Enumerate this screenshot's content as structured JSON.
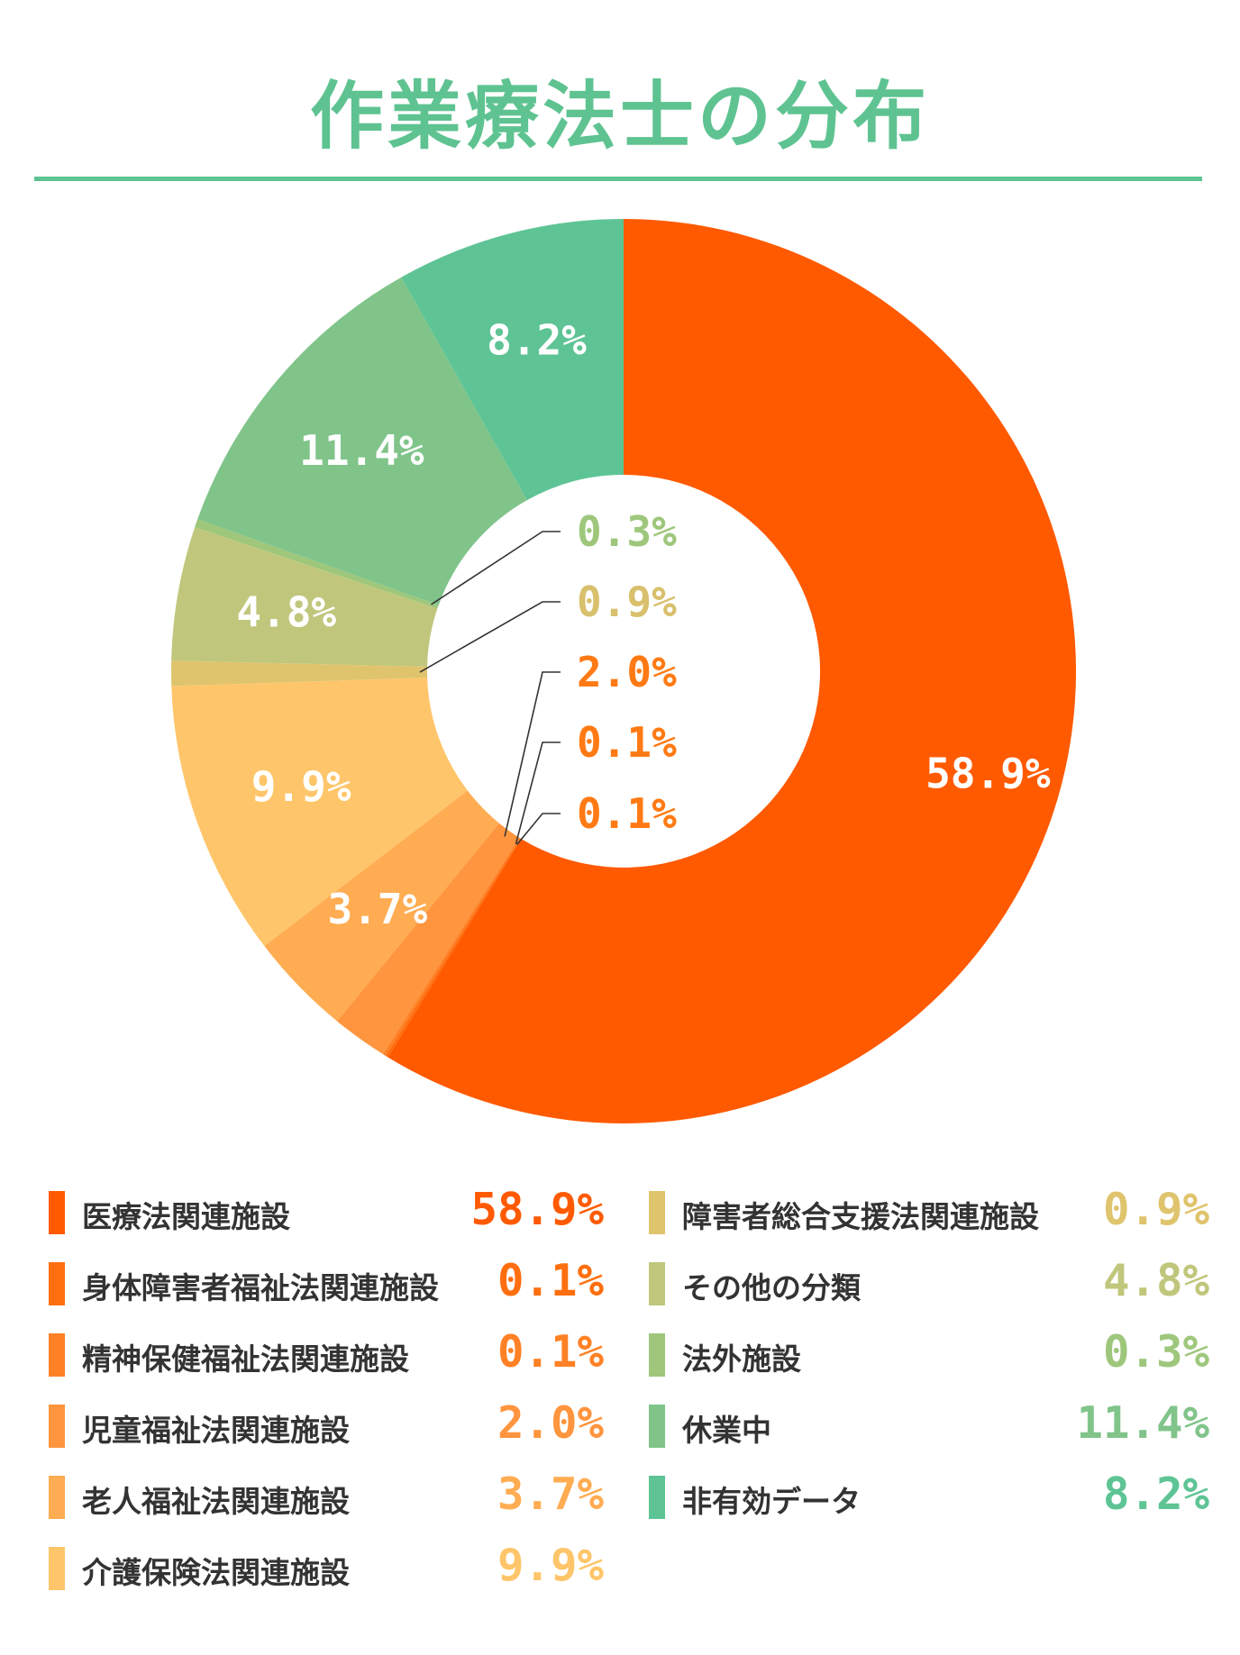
{
  "title": "作業療法士の分布",
  "colors": {
    "title": "#5ec391",
    "label_white": "#ffffff",
    "leader_line": "#333333"
  },
  "chart_data": {
    "type": "pie",
    "donut": true,
    "title": "作業療法士の分布",
    "start": "12 o'clock, clockwise",
    "slices": [
      {
        "name": "医療法関連施設",
        "value": 58.9,
        "label": "58.9%",
        "color": "#ff5a00"
      },
      {
        "name": "身体障害者福祉法関連施設",
        "value": 0.1,
        "label": "0.1%",
        "color": "#ff6f0f"
      },
      {
        "name": "精神保健福祉法関連施設",
        "value": 0.1,
        "label": "0.1%",
        "color": "#ff8125"
      },
      {
        "name": "児童福祉法関連施設",
        "value": 2.0,
        "label": "2.0%",
        "color": "#ff953e"
      },
      {
        "name": "老人福祉法関連施設",
        "value": 3.7,
        "label": "3.7%",
        "color": "#ffac52"
      },
      {
        "name": "介護保険法関連施設",
        "value": 9.9,
        "label": "9.9%",
        "color": "#ffc56a"
      },
      {
        "name": "障害者総合支援法関連施設",
        "value": 0.9,
        "label": "0.9%",
        "color": "#dfc46d"
      },
      {
        "name": "その他の分類",
        "value": 4.8,
        "label": "4.8%",
        "color": "#c0c77c"
      },
      {
        "name": "法外施設",
        "value": 0.3,
        "label": "0.3%",
        "color": "#9ec77c"
      },
      {
        "name": "休業中",
        "value": 11.4,
        "label": "11.4%",
        "color": "#80c48a"
      },
      {
        "name": "非有効データ",
        "value": 8.2,
        "label": "8.2%",
        "color": "#5ec495"
      }
    ],
    "outside_label_colors": {
      "法外施設": "#9ec77c",
      "障害者総合支援法関連施設": "#d8c06d",
      "児童福祉法関連施設": "#ff7a14",
      "精神保健福祉法関連施設": "#ff7a14",
      "身体障害者福祉法関連施設": "#ff7a14"
    }
  },
  "legend": {
    "left": [
      {
        "label": "医療法関連施設",
        "value": "58.9%",
        "color": "#ff5a00"
      },
      {
        "label": "身体障害者福祉法関連施設",
        "value": "0.1%",
        "color": "#ff6f0f"
      },
      {
        "label": "精神保健福祉法関連施設",
        "value": "0.1%",
        "color": "#ff8125"
      },
      {
        "label": "児童福祉法関連施設",
        "value": "2.0%",
        "color": "#ff953e"
      },
      {
        "label": "老人福祉法関連施設",
        "value": "3.7%",
        "color": "#ffac52"
      },
      {
        "label": "介護保険法関連施設",
        "value": "9.9%",
        "color": "#ffc56a"
      }
    ],
    "right": [
      {
        "label": "障害者総合支援法関連施設",
        "value": "0.9%",
        "color": "#dfc46d"
      },
      {
        "label": "その他の分類",
        "value": "4.8%",
        "color": "#c0c77c"
      },
      {
        "label": "法外施設",
        "value": "0.3%",
        "color": "#9ec77c"
      },
      {
        "label": "休業中",
        "value": "11.4%",
        "color": "#80c48a"
      },
      {
        "label": "非有効データ",
        "value": "8.2%",
        "color": "#5ec495"
      }
    ]
  }
}
